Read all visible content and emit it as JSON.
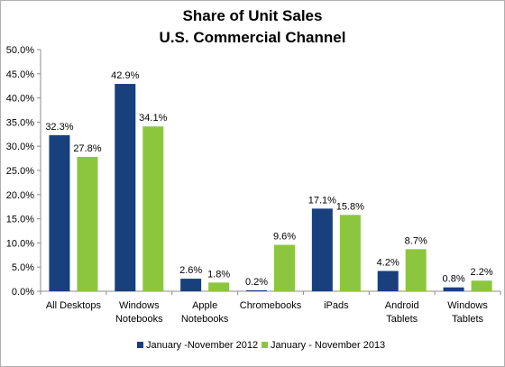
{
  "chart_data": {
    "type": "bar",
    "title": "Share of Unit Sales",
    "subtitle": "U.S. Commercial Channel",
    "xlabel": "",
    "ylabel": "",
    "ylim": [
      0,
      50
    ],
    "yticks": [
      "0.0%",
      "5.0%",
      "10.0%",
      "15.0%",
      "20.0%",
      "25.0%",
      "30.0%",
      "35.0%",
      "40.0%",
      "45.0%",
      "50.0%"
    ],
    "grid": false,
    "legend": "bottom",
    "categories": [
      [
        "All Desktops"
      ],
      [
        "Windows",
        "Notebooks"
      ],
      [
        "Apple",
        "Notebooks"
      ],
      [
        "Chromebooks"
      ],
      [
        "iPads"
      ],
      [
        "Android",
        "Tablets"
      ],
      [
        "Windows",
        "Tablets"
      ]
    ],
    "series": [
      {
        "name": "January -November 2012",
        "color": "#17407d",
        "values": [
          32.3,
          42.9,
          2.6,
          0.2,
          17.1,
          4.2,
          0.8
        ],
        "labels": [
          "32.3%",
          "42.9%",
          "2.6%",
          "0.2%",
          "17.1%",
          "4.2%",
          "0.8%"
        ]
      },
      {
        "name": "January - November 2013",
        "color": "#8cc63f",
        "values": [
          27.8,
          34.1,
          1.8,
          9.6,
          15.8,
          8.7,
          2.2
        ],
        "labels": [
          "27.8%",
          "34.1%",
          "1.8%",
          "9.6%",
          "15.8%",
          "8.7%",
          "2.2%"
        ]
      }
    ]
  }
}
